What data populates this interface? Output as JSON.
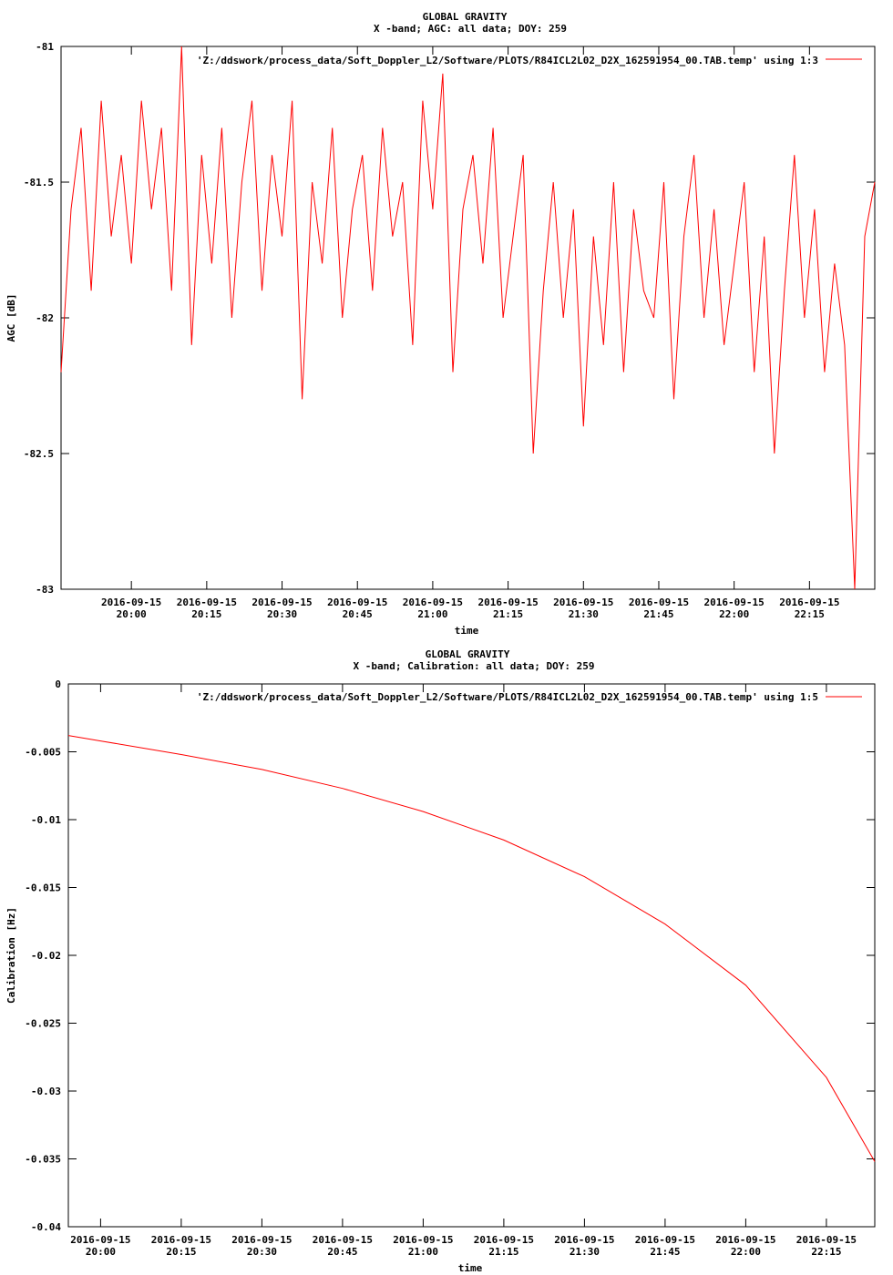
{
  "chart_data": [
    {
      "type": "line",
      "title": "GLOBAL GRAVITY",
      "subtitle": "X -band; AGC: all data; DOY: 259",
      "xlabel": "time",
      "ylabel": "AGC [dB]",
      "ylim": [
        -83,
        -81
      ],
      "yticks": [
        -81,
        -81.5,
        -82,
        -82.5,
        -83
      ],
      "ytick_labels": [
        "-81",
        "-81.5",
        "-82",
        "-82.5",
        "-83"
      ],
      "xlim": [
        "2016-09-15 19:46",
        "2016-09-15 22:28"
      ],
      "xticks": [
        "2016-09-15 20:00",
        "2016-09-15 20:15",
        "2016-09-15 20:30",
        "2016-09-15 20:45",
        "2016-09-15 21:00",
        "2016-09-15 21:15",
        "2016-09-15 21:30",
        "2016-09-15 21:45",
        "2016-09-15 22:00",
        "2016-09-15 22:15"
      ],
      "xtick_date": "2016-09-15",
      "xtick_times": [
        "20:00",
        "20:15",
        "20:30",
        "20:45",
        "21:00",
        "21:15",
        "21:30",
        "21:45",
        "22:00",
        "22:15"
      ],
      "grid": false,
      "legend_position": "top-right",
      "series": [
        {
          "name": "'Z:/ddswork/process_data/Soft_Doppler_L2/Software/PLOTS/R84ICL2L02_D2X_162591954_00.TAB.temp' using 1:3",
          "color": "#ff0000",
          "x": [
            "19:46",
            "19:48",
            "19:50",
            "19:52",
            "19:54",
            "19:56",
            "19:58",
            "20:00",
            "20:02",
            "20:04",
            "20:06",
            "20:08",
            "20:10",
            "20:12",
            "20:14",
            "20:16",
            "20:18",
            "20:20",
            "20:22",
            "20:24",
            "20:26",
            "20:28",
            "20:30",
            "20:32",
            "20:34",
            "20:36",
            "20:38",
            "20:40",
            "20:42",
            "20:44",
            "20:46",
            "20:48",
            "20:50",
            "20:52",
            "20:54",
            "20:56",
            "20:58",
            "21:00",
            "21:02",
            "21:04",
            "21:06",
            "21:08",
            "21:10",
            "21:12",
            "21:14",
            "21:16",
            "21:18",
            "21:20",
            "21:22",
            "21:24",
            "21:26",
            "21:28",
            "21:30",
            "21:32",
            "21:34",
            "21:36",
            "21:38",
            "21:40",
            "21:42",
            "21:44",
            "21:46",
            "21:48",
            "21:50",
            "21:52",
            "21:54",
            "21:56",
            "21:58",
            "22:00",
            "22:02",
            "22:04",
            "22:06",
            "22:08",
            "22:10",
            "22:12",
            "22:14",
            "22:16",
            "22:18",
            "22:20",
            "22:22",
            "22:24",
            "22:26",
            "22:28"
          ],
          "values": [
            -82.2,
            -81.6,
            -81.3,
            -81.9,
            -81.2,
            -81.7,
            -81.4,
            -81.8,
            -81.2,
            -81.6,
            -81.3,
            -81.9,
            -81.0,
            -82.1,
            -81.4,
            -81.8,
            -81.3,
            -82.0,
            -81.5,
            -81.2,
            -81.9,
            -81.4,
            -81.7,
            -81.2,
            -82.3,
            -81.5,
            -81.8,
            -81.3,
            -82.0,
            -81.6,
            -81.4,
            -81.9,
            -81.3,
            -81.7,
            -81.5,
            -82.1,
            -81.2,
            -81.6,
            -81.1,
            -82.2,
            -81.6,
            -81.4,
            -81.8,
            -81.3,
            -82.0,
            -81.7,
            -81.4,
            -82.5,
            -81.9,
            -81.5,
            -82.0,
            -81.6,
            -82.4,
            -81.7,
            -82.1,
            -81.5,
            -82.2,
            -81.6,
            -81.9,
            -82.0,
            -81.5,
            -82.3,
            -81.7,
            -81.4,
            -82.0,
            -81.6,
            -82.1,
            -81.8,
            -81.5,
            -82.2,
            -81.7,
            -82.5,
            -81.9,
            -81.4,
            -82.0,
            -81.6,
            -82.2,
            -81.8,
            -82.1,
            -83.0,
            -81.7,
            -81.5
          ]
        }
      ]
    },
    {
      "type": "line",
      "title": "GLOBAL GRAVITY",
      "subtitle": "X -band; Calibration: all data; DOY: 259",
      "xlabel": "time",
      "ylabel": "Calibration [Hz]",
      "ylim": [
        -0.04,
        0
      ],
      "yticks": [
        0,
        -0.005,
        -0.01,
        -0.015,
        -0.02,
        -0.025,
        -0.03,
        -0.035,
        -0.04
      ],
      "ytick_labels": [
        "0",
        "-0.005",
        "-0.01",
        "-0.015",
        "-0.02",
        "-0.025",
        "-0.03",
        "-0.035",
        "-0.04"
      ],
      "xlim": [
        "2016-09-15 19:54",
        "2016-09-15 22:24"
      ],
      "xticks": [
        "2016-09-15 20:00",
        "2016-09-15 20:15",
        "2016-09-15 20:30",
        "2016-09-15 20:45",
        "2016-09-15 21:00",
        "2016-09-15 21:15",
        "2016-09-15 21:30",
        "2016-09-15 21:45",
        "2016-09-15 22:00",
        "2016-09-15 22:15"
      ],
      "xtick_date": "2016-09-15",
      "xtick_times": [
        "20:00",
        "20:15",
        "20:30",
        "20:45",
        "21:00",
        "21:15",
        "21:30",
        "21:45",
        "22:00",
        "22:15"
      ],
      "grid": false,
      "legend_position": "top-right",
      "series": [
        {
          "name": "'Z:/ddswork/process_data/Soft_Doppler_L2/Software/PLOTS/R84ICL2L02_D2X_162591954_00.TAB.temp' using 1:5",
          "color": "#ff0000",
          "x": [
            "19:54",
            "20:00",
            "20:15",
            "20:30",
            "20:45",
            "21:00",
            "21:15",
            "21:30",
            "21:45",
            "22:00",
            "22:15",
            "22:24"
          ],
          "values": [
            -0.0038,
            -0.0042,
            -0.0052,
            -0.0063,
            -0.0077,
            -0.0094,
            -0.0115,
            -0.0142,
            -0.0177,
            -0.0222,
            -0.029,
            -0.0352
          ]
        }
      ]
    }
  ]
}
